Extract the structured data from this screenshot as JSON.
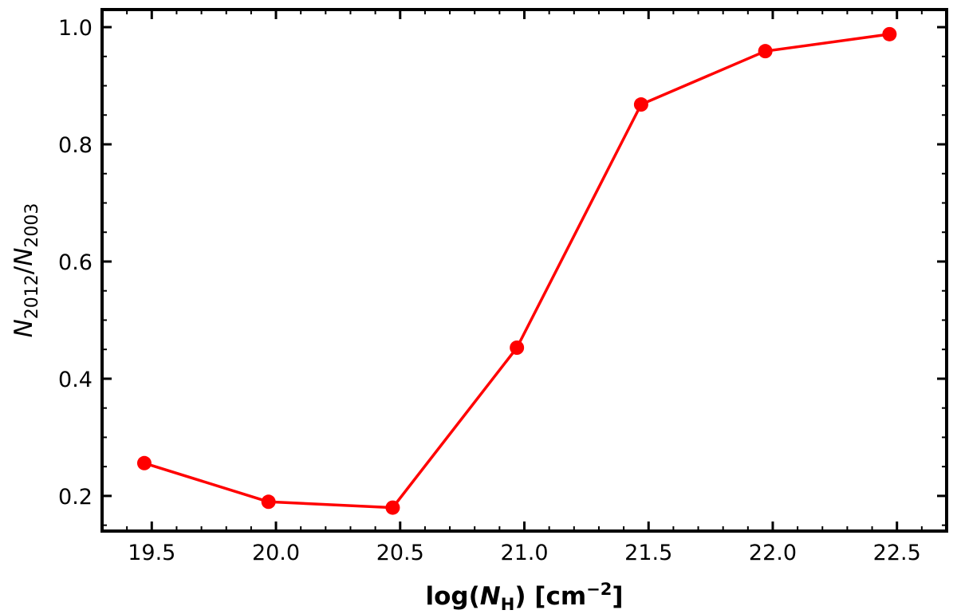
{
  "chart_data": {
    "type": "line",
    "title": "",
    "xlabel": {
      "prefix": "log(",
      "symbol": "N",
      "subscript": "H",
      "suffix": ") [cm",
      "superscript": "−2",
      "close": "]"
    },
    "ylabel": {
      "symbol_a": "N",
      "sub_a": "2012",
      "slash": "/",
      "symbol_b": "N",
      "sub_b": "2003"
    },
    "xlim": [
      19.3,
      22.7
    ],
    "ylim": [
      0.14,
      1.03
    ],
    "x_ticks": [
      19.5,
      20.0,
      20.5,
      21.0,
      21.5,
      22.0,
      22.5
    ],
    "x_tick_labels": [
      "19.5",
      "20.0",
      "20.5",
      "21.0",
      "21.5",
      "22.0",
      "22.5"
    ],
    "x_minor_step": 0.1,
    "y_ticks": [
      0.2,
      0.4,
      0.6,
      0.8,
      1.0
    ],
    "y_tick_labels": [
      "0.2",
      "0.4",
      "0.6",
      "0.8",
      "1.0"
    ],
    "y_minor_step": 0.05,
    "grid": false,
    "series": [
      {
        "color": "#ff0000",
        "marker": "circle",
        "x": [
          19.47,
          19.97,
          20.47,
          20.97,
          21.47,
          21.97,
          22.47
        ],
        "y": [
          0.256,
          0.19,
          0.18,
          0.453,
          0.868,
          0.959,
          0.988
        ]
      }
    ]
  }
}
